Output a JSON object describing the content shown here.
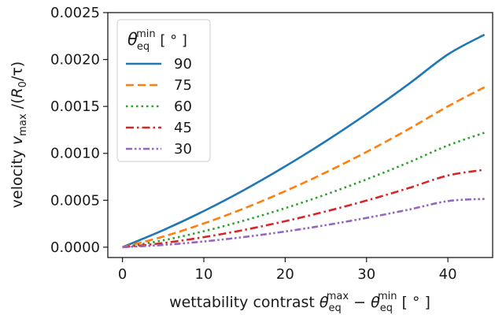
{
  "chart_data": {
    "type": "line",
    "xlabel": {
      "prefix": "wettability contrast ",
      "theta1": "θ",
      "theta1_sub": "eq",
      "theta1_sup": "max",
      "minus": " − ",
      "theta2": "θ",
      "theta2_sub": "eq",
      "theta2_sup": "min",
      "unit": " [ ° ]"
    },
    "ylabel": {
      "prefix": "velocity ",
      "v": "v",
      "v_sub": "max",
      "mid": " /(",
      "r": "R",
      "r_sub": "0",
      "suffix": "/τ)"
    },
    "xlim": [
      -1.8,
      45.5
    ],
    "ylim": [
      -0.00011,
      0.0025
    ],
    "xticks": [
      0,
      10,
      20,
      30,
      40
    ],
    "xtick_labels": [
      "0",
      "10",
      "20",
      "30",
      "40"
    ],
    "yticks": [
      0,
      0.0005,
      0.001,
      0.0015,
      0.002,
      0.0025
    ],
    "ytick_labels": [
      "0.0000",
      "0.0005",
      "0.0010",
      "0.0015",
      "0.0020",
      "0.0025"
    ],
    "grid": false,
    "legend": {
      "position": "top-left",
      "title_theta": "θ",
      "title_sub": "eq",
      "title_sup": "min",
      "title_unit": " [ ° ]"
    },
    "x": [
      0,
      5,
      10,
      15,
      20,
      25,
      30,
      35,
      40,
      44.5
    ],
    "series": [
      {
        "name": "90",
        "color": "#1f77b4",
        "dash": "solid",
        "values": [
          0,
          0.000181,
          0.000385,
          0.000612,
          0.000861,
          0.00113,
          0.001419,
          0.001727,
          0.002054,
          0.002265
        ]
      },
      {
        "name": "75",
        "color": "#ff7f0e",
        "dash": "dashed",
        "values": [
          0,
          0.000113,
          0.000253,
          0.000415,
          0.000597,
          0.000797,
          0.001015,
          0.00125,
          0.001501,
          0.001705
        ]
      },
      {
        "name": "60",
        "color": "#2ca02c",
        "dash": "dotted",
        "values": [
          0,
          7.3e-05,
          0.00017,
          0.000285,
          0.000416,
          0.000562,
          0.000723,
          0.000897,
          0.001084,
          0.00122
        ]
      },
      {
        "name": "45",
        "color": "#d62728",
        "dash": "dashdot",
        "values": [
          0,
          4.4e-05,
          0.000107,
          0.000185,
          0.000277,
          0.000381,
          0.000497,
          0.000625,
          0.000764,
          0.000825
        ]
      },
      {
        "name": "30",
        "color": "#9467bd",
        "dash": "dashdotdot",
        "values": [
          0,
          2.4e-05,
          6.1e-05,
          0.000109,
          0.000167,
          0.000235,
          0.000312,
          0.000397,
          0.000491,
          0.000515
        ]
      }
    ]
  }
}
